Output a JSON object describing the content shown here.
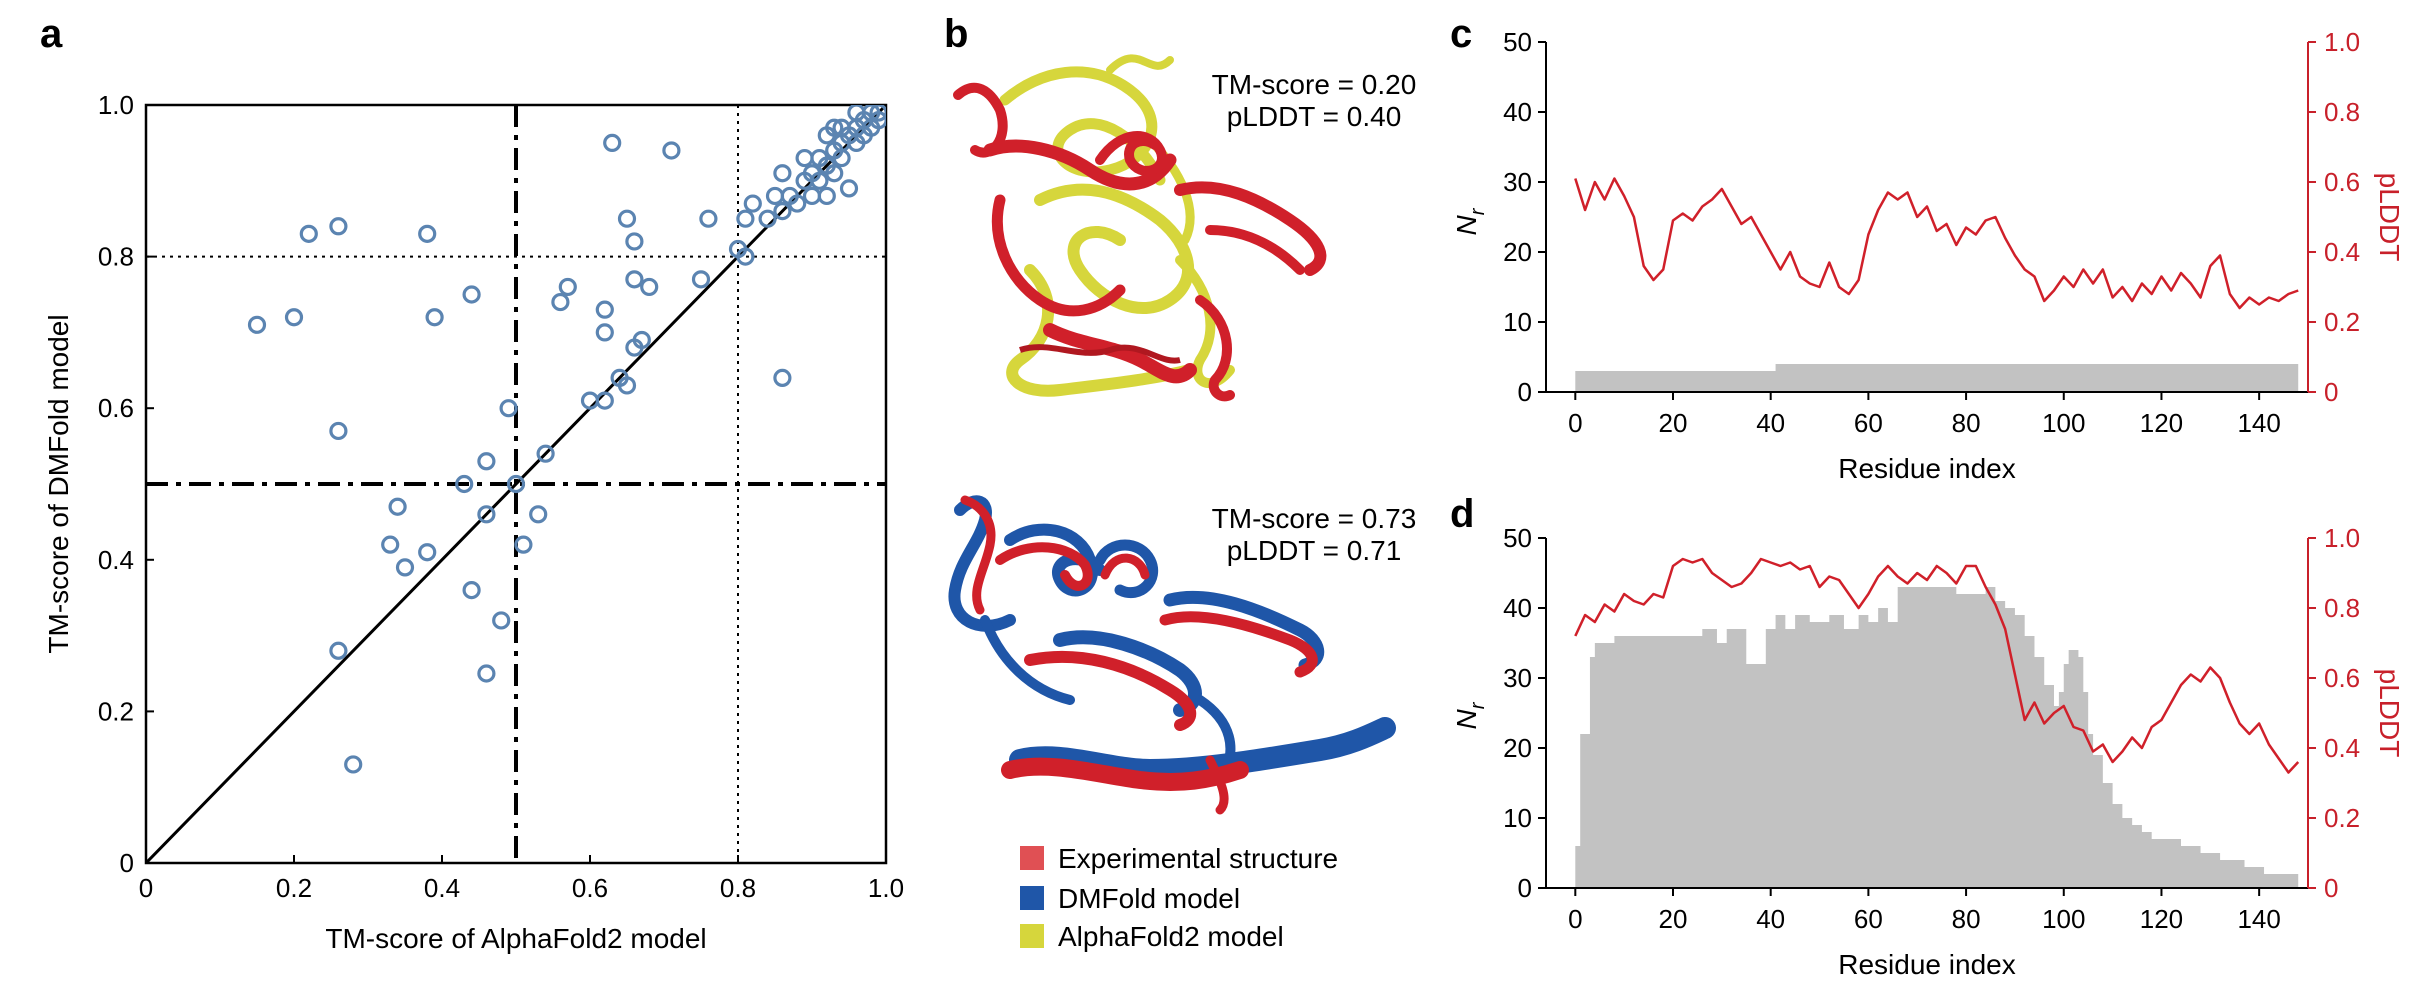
{
  "colors": {
    "scatter_point": "#5b84b1",
    "pLDDT_line": "#d0202a",
    "nr_fill": "#c2c2c2",
    "experimental": "#e05054",
    "dmfold": "#1f56a8",
    "alphafold2": "#d6d63c",
    "right_axis": "#c8202a"
  },
  "panel_labels": {
    "a": "a",
    "b": "b",
    "c": "c",
    "d": "d"
  },
  "structures": {
    "top": {
      "tm_score": "TM-score = 0.20",
      "plddt": "pLDDT = 0.40"
    },
    "bottom": {
      "tm_score": "TM-score = 0.73",
      "plddt": "pLDDT = 0.71"
    }
  },
  "legend": {
    "experimental": "Experimental structure",
    "dmfold": "DMFold model",
    "alphafold2": "AlphaFold2 model"
  },
  "chart_data": [
    {
      "id": "a",
      "type": "scatter",
      "xlabel": "TM-score of AlphaFold2 model",
      "ylabel": "TM-score of DMFold model",
      "xlim": [
        0,
        1.0
      ],
      "ylim": [
        0,
        1.0
      ],
      "x_ticks": [
        0,
        0.2,
        0.4,
        0.6,
        0.8,
        1.0
      ],
      "x_tick_labels": [
        "0",
        "0.2",
        "0.4",
        "0.6",
        "0.8",
        "1.0"
      ],
      "y_ticks": [
        0,
        0.2,
        0.4,
        0.6,
        0.8,
        1.0
      ],
      "y_tick_labels": [
        "0",
        "0.2",
        "0.4",
        "0.6",
        "0.8",
        "1.0"
      ],
      "reference_lines": {
        "diagonal": true,
        "dashdot": [
          0.5
        ],
        "dotted": [
          0.8
        ]
      },
      "points": [
        [
          0.15,
          0.71
        ],
        [
          0.2,
          0.72
        ],
        [
          0.22,
          0.83
        ],
        [
          0.26,
          0.84
        ],
        [
          0.26,
          0.57
        ],
        [
          0.26,
          0.28
        ],
        [
          0.28,
          0.13
        ],
        [
          0.33,
          0.42
        ],
        [
          0.34,
          0.47
        ],
        [
          0.35,
          0.39
        ],
        [
          0.38,
          0.83
        ],
        [
          0.38,
          0.41
        ],
        [
          0.39,
          0.72
        ],
        [
          0.43,
          0.5
        ],
        [
          0.44,
          0.75
        ],
        [
          0.44,
          0.36
        ],
        [
          0.46,
          0.53
        ],
        [
          0.46,
          0.46
        ],
        [
          0.46,
          0.25
        ],
        [
          0.48,
          0.32
        ],
        [
          0.49,
          0.6
        ],
        [
          0.5,
          0.5
        ],
        [
          0.51,
          0.42
        ],
        [
          0.53,
          0.46
        ],
        [
          0.54,
          0.54
        ],
        [
          0.56,
          0.74
        ],
        [
          0.57,
          0.76
        ],
        [
          0.6,
          0.61
        ],
        [
          0.62,
          0.7
        ],
        [
          0.62,
          0.73
        ],
        [
          0.62,
          0.61
        ],
        [
          0.63,
          0.95
        ],
        [
          0.64,
          0.64
        ],
        [
          0.65,
          0.85
        ],
        [
          0.65,
          0.63
        ],
        [
          0.66,
          0.82
        ],
        [
          0.66,
          0.77
        ],
        [
          0.66,
          0.68
        ],
        [
          0.67,
          0.69
        ],
        [
          0.68,
          0.76
        ],
        [
          0.71,
          0.94
        ],
        [
          0.75,
          0.77
        ],
        [
          0.76,
          0.85
        ],
        [
          0.8,
          0.81
        ],
        [
          0.81,
          0.85
        ],
        [
          0.81,
          0.8
        ],
        [
          0.82,
          0.87
        ],
        [
          0.84,
          0.85
        ],
        [
          0.85,
          0.88
        ],
        [
          0.86,
          0.64
        ],
        [
          0.86,
          0.86
        ],
        [
          0.86,
          0.91
        ],
        [
          0.87,
          0.88
        ],
        [
          0.88,
          0.87
        ],
        [
          0.89,
          0.9
        ],
        [
          0.89,
          0.93
        ],
        [
          0.9,
          0.91
        ],
        [
          0.9,
          0.88
        ],
        [
          0.91,
          0.9
        ],
        [
          0.91,
          0.93
        ],
        [
          0.92,
          0.88
        ],
        [
          0.92,
          0.92
        ],
        [
          0.93,
          0.94
        ],
        [
          0.93,
          0.91
        ],
        [
          0.94,
          0.95
        ],
        [
          0.94,
          0.93
        ],
        [
          0.95,
          0.96
        ],
        [
          0.95,
          0.89
        ],
        [
          0.96,
          0.97
        ],
        [
          0.96,
          0.95
        ],
        [
          0.97,
          0.98
        ],
        [
          0.97,
          0.96
        ],
        [
          0.98,
          0.97
        ],
        [
          0.98,
          0.99
        ],
        [
          0.99,
          0.98
        ],
        [
          0.99,
          0.99
        ],
        [
          0.92,
          0.96
        ],
        [
          0.94,
          0.97
        ],
        [
          0.96,
          0.99
        ],
        [
          0.93,
          0.97
        ]
      ]
    },
    {
      "id": "c",
      "type": "line",
      "xlabel": "Residue index",
      "ylabel": "N",
      "ylabel_sub": "r",
      "y2label": "pLDDT",
      "xlim": [
        -6,
        150
      ],
      "ylim": [
        0,
        50
      ],
      "y2lim": [
        0,
        1.0
      ],
      "x_ticks": [
        0,
        20,
        40,
        60,
        80,
        100,
        120,
        140
      ],
      "x_tick_labels": [
        "0",
        "20",
        "40",
        "60",
        "80",
        "100",
        "120",
        "140"
      ],
      "y_ticks": [
        0,
        10,
        20,
        30,
        40,
        50
      ],
      "y_tick_labels": [
        "0",
        "10",
        "20",
        "30",
        "40",
        "50"
      ],
      "y2_ticks": [
        0,
        0.2,
        0.4,
        0.6,
        0.8,
        1.0
      ],
      "y2_tick_labels": [
        "0",
        "0.2",
        "0.4",
        "0.6",
        "0.8",
        "1.0"
      ],
      "nr_steps": [
        [
          0,
          3
        ],
        [
          41,
          4
        ],
        [
          148,
          4
        ]
      ],
      "plddt": [
        [
          0,
          0.61
        ],
        [
          2,
          0.52
        ],
        [
          4,
          0.6
        ],
        [
          6,
          0.55
        ],
        [
          8,
          0.61
        ],
        [
          10,
          0.56
        ],
        [
          12,
          0.5
        ],
        [
          14,
          0.36
        ],
        [
          16,
          0.32
        ],
        [
          18,
          0.35
        ],
        [
          20,
          0.49
        ],
        [
          22,
          0.51
        ],
        [
          24,
          0.49
        ],
        [
          26,
          0.53
        ],
        [
          28,
          0.55
        ],
        [
          30,
          0.58
        ],
        [
          32,
          0.53
        ],
        [
          34,
          0.48
        ],
        [
          36,
          0.5
        ],
        [
          38,
          0.45
        ],
        [
          40,
          0.4
        ],
        [
          42,
          0.35
        ],
        [
          44,
          0.4
        ],
        [
          46,
          0.33
        ],
        [
          48,
          0.31
        ],
        [
          50,
          0.3
        ],
        [
          52,
          0.37
        ],
        [
          54,
          0.3
        ],
        [
          56,
          0.28
        ],
        [
          58,
          0.32
        ],
        [
          60,
          0.45
        ],
        [
          62,
          0.52
        ],
        [
          64,
          0.57
        ],
        [
          66,
          0.55
        ],
        [
          68,
          0.57
        ],
        [
          70,
          0.5
        ],
        [
          72,
          0.53
        ],
        [
          74,
          0.46
        ],
        [
          76,
          0.48
        ],
        [
          78,
          0.42
        ],
        [
          80,
          0.47
        ],
        [
          82,
          0.45
        ],
        [
          84,
          0.49
        ],
        [
          86,
          0.5
        ],
        [
          88,
          0.44
        ],
        [
          90,
          0.39
        ],
        [
          92,
          0.35
        ],
        [
          94,
          0.33
        ],
        [
          96,
          0.26
        ],
        [
          98,
          0.29
        ],
        [
          100,
          0.33
        ],
        [
          102,
          0.3
        ],
        [
          104,
          0.35
        ],
        [
          106,
          0.31
        ],
        [
          108,
          0.35
        ],
        [
          110,
          0.27
        ],
        [
          112,
          0.3
        ],
        [
          114,
          0.26
        ],
        [
          116,
          0.31
        ],
        [
          118,
          0.28
        ],
        [
          120,
          0.33
        ],
        [
          122,
          0.29
        ],
        [
          124,
          0.34
        ],
        [
          126,
          0.31
        ],
        [
          128,
          0.27
        ],
        [
          130,
          0.36
        ],
        [
          132,
          0.39
        ],
        [
          134,
          0.28
        ],
        [
          136,
          0.24
        ],
        [
          138,
          0.27
        ],
        [
          140,
          0.25
        ],
        [
          142,
          0.27
        ],
        [
          144,
          0.26
        ],
        [
          146,
          0.28
        ],
        [
          148,
          0.29
        ]
      ]
    },
    {
      "id": "d",
      "type": "line",
      "xlabel": "Residue index",
      "ylabel": "N",
      "ylabel_sub": "r",
      "y2label": "pLDDT",
      "xlim": [
        -6,
        150
      ],
      "ylim": [
        0,
        50
      ],
      "y2lim": [
        0,
        1.0
      ],
      "x_ticks": [
        0,
        20,
        40,
        60,
        80,
        100,
        120,
        140
      ],
      "x_tick_labels": [
        "0",
        "20",
        "40",
        "60",
        "80",
        "100",
        "120",
        "140"
      ],
      "y_ticks": [
        0,
        10,
        20,
        30,
        40,
        50
      ],
      "y_tick_labels": [
        "0",
        "10",
        "20",
        "30",
        "40",
        "50"
      ],
      "y2_ticks": [
        0,
        0.2,
        0.4,
        0.6,
        0.8,
        1.0
      ],
      "y2_tick_labels": [
        "0",
        "0.2",
        "0.4",
        "0.6",
        "0.8",
        "1.0"
      ],
      "nr_steps": [
        [
          0,
          6
        ],
        [
          1,
          22
        ],
        [
          3,
          33
        ],
        [
          4,
          35
        ],
        [
          8,
          36
        ],
        [
          24,
          36
        ],
        [
          26,
          37
        ],
        [
          29,
          35
        ],
        [
          31,
          37
        ],
        [
          35,
          32
        ],
        [
          39,
          37
        ],
        [
          41,
          39
        ],
        [
          43,
          37
        ],
        [
          45,
          39
        ],
        [
          48,
          38
        ],
        [
          52,
          39
        ],
        [
          55,
          37
        ],
        [
          58,
          39
        ],
        [
          60,
          38
        ],
        [
          62,
          40
        ],
        [
          64,
          38
        ],
        [
          66,
          43
        ],
        [
          78,
          42
        ],
        [
          84,
          43
        ],
        [
          86,
          41
        ],
        [
          88,
          40
        ],
        [
          90,
          39
        ],
        [
          92,
          36
        ],
        [
          94,
          33
        ],
        [
          96,
          29
        ],
        [
          98,
          26
        ],
        [
          99,
          28
        ],
        [
          100,
          32
        ],
        [
          101,
          34
        ],
        [
          103,
          33
        ],
        [
          104,
          28
        ],
        [
          105,
          22
        ],
        [
          106,
          19
        ],
        [
          108,
          15
        ],
        [
          110,
          12
        ],
        [
          112,
          10
        ],
        [
          114,
          9
        ],
        [
          116,
          8
        ],
        [
          118,
          7
        ],
        [
          120,
          7
        ],
        [
          124,
          6
        ],
        [
          128,
          5
        ],
        [
          132,
          4
        ],
        [
          137,
          3
        ],
        [
          141,
          2
        ],
        [
          146,
          2
        ],
        [
          148,
          2
        ]
      ],
      "plddt": [
        [
          0,
          0.72
        ],
        [
          2,
          0.78
        ],
        [
          4,
          0.76
        ],
        [
          6,
          0.81
        ],
        [
          8,
          0.79
        ],
        [
          10,
          0.84
        ],
        [
          12,
          0.82
        ],
        [
          14,
          0.81
        ],
        [
          16,
          0.84
        ],
        [
          18,
          0.83
        ],
        [
          20,
          0.92
        ],
        [
          22,
          0.94
        ],
        [
          24,
          0.93
        ],
        [
          26,
          0.94
        ],
        [
          28,
          0.9
        ],
        [
          30,
          0.88
        ],
        [
          32,
          0.86
        ],
        [
          34,
          0.87
        ],
        [
          36,
          0.9
        ],
        [
          38,
          0.94
        ],
        [
          40,
          0.93
        ],
        [
          42,
          0.92
        ],
        [
          44,
          0.93
        ],
        [
          46,
          0.91
        ],
        [
          48,
          0.92
        ],
        [
          50,
          0.86
        ],
        [
          52,
          0.89
        ],
        [
          54,
          0.88
        ],
        [
          56,
          0.84
        ],
        [
          58,
          0.8
        ],
        [
          60,
          0.84
        ],
        [
          62,
          0.89
        ],
        [
          64,
          0.92
        ],
        [
          66,
          0.89
        ],
        [
          68,
          0.87
        ],
        [
          70,
          0.9
        ],
        [
          72,
          0.88
        ],
        [
          74,
          0.92
        ],
        [
          76,
          0.9
        ],
        [
          78,
          0.87
        ],
        [
          80,
          0.92
        ],
        [
          82,
          0.92
        ],
        [
          84,
          0.86
        ],
        [
          86,
          0.81
        ],
        [
          88,
          0.74
        ],
        [
          90,
          0.61
        ],
        [
          92,
          0.48
        ],
        [
          94,
          0.53
        ],
        [
          96,
          0.47
        ],
        [
          98,
          0.5
        ],
        [
          100,
          0.52
        ],
        [
          102,
          0.46
        ],
        [
          104,
          0.45
        ],
        [
          106,
          0.39
        ],
        [
          108,
          0.41
        ],
        [
          110,
          0.36
        ],
        [
          112,
          0.39
        ],
        [
          114,
          0.43
        ],
        [
          116,
          0.4
        ],
        [
          118,
          0.46
        ],
        [
          120,
          0.48
        ],
        [
          122,
          0.53
        ],
        [
          124,
          0.58
        ],
        [
          126,
          0.61
        ],
        [
          128,
          0.59
        ],
        [
          130,
          0.63
        ],
        [
          132,
          0.6
        ],
        [
          134,
          0.53
        ],
        [
          136,
          0.47
        ],
        [
          138,
          0.44
        ],
        [
          140,
          0.47
        ],
        [
          142,
          0.41
        ],
        [
          144,
          0.37
        ],
        [
          146,
          0.33
        ],
        [
          148,
          0.36
        ]
      ]
    }
  ]
}
